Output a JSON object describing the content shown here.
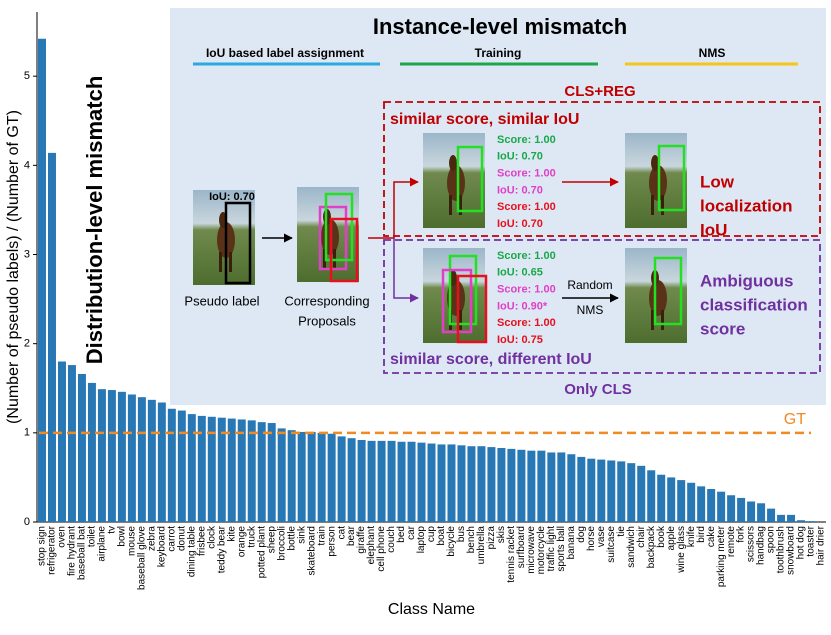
{
  "chart_data": {
    "type": "bar",
    "y_label": "(Number of pseudo labels) / (Number of GT)",
    "x_label": "Class Name",
    "annotation": "Distribution-level  mismatch",
    "color": "#2878b5",
    "reference_line": {
      "value": 1,
      "label": "GT",
      "color": "#f08a24"
    },
    "categories": [
      "stop sign",
      "refrigerator",
      "oven",
      "fire hydrant",
      "baseball bat",
      "toilet",
      "airplane",
      "tv",
      "bowl",
      "mouse",
      "baseball glove",
      "zebra",
      "keyboard",
      "carrot",
      "donut",
      "dining table",
      "frisbee",
      "clock",
      "teddy bear",
      "kite",
      "orange",
      "truck",
      "potted plant",
      "sheep",
      "broccoli",
      "bottle",
      "sink",
      "skateboard",
      "train",
      "person",
      "cat",
      "bear",
      "giraffe",
      "elephant",
      "cell phone",
      "couch",
      "bed",
      "car",
      "laptop",
      "cup",
      "boat",
      "bicycle",
      "bus",
      "bench",
      "umbrella",
      "pizza",
      "skis",
      "tennis racket",
      "surfboard",
      "microwave",
      "motorcycle",
      "traffic light",
      "sports ball",
      "banana",
      "dog",
      "horse",
      "vase",
      "suitcase",
      "tie",
      "sandwich",
      "chair",
      "backpack",
      "book",
      "apple",
      "wine glass",
      "knife",
      "bird",
      "cake",
      "parking meter",
      "remote",
      "fork",
      "scissors",
      "handbag",
      "spoon",
      "toothbrush",
      "snowboard",
      "hot dog",
      "toaster",
      "hair drier"
    ],
    "values": [
      5.42,
      4.14,
      1.8,
      1.76,
      1.66,
      1.56,
      1.49,
      1.48,
      1.46,
      1.43,
      1.4,
      1.37,
      1.34,
      1.27,
      1.25,
      1.21,
      1.19,
      1.18,
      1.17,
      1.16,
      1.15,
      1.14,
      1.12,
      1.11,
      1.05,
      1.03,
      1.01,
      1.01,
      1.0,
      0.99,
      0.96,
      0.94,
      0.92,
      0.91,
      0.91,
      0.91,
      0.9,
      0.9,
      0.89,
      0.88,
      0.87,
      0.87,
      0.86,
      0.85,
      0.85,
      0.84,
      0.83,
      0.82,
      0.81,
      0.8,
      0.8,
      0.78,
      0.78,
      0.76,
      0.73,
      0.71,
      0.7,
      0.69,
      0.68,
      0.66,
      0.63,
      0.58,
      0.53,
      0.5,
      0.47,
      0.44,
      0.4,
      0.37,
      0.34,
      0.3,
      0.27,
      0.23,
      0.21,
      0.15,
      0.08,
      0.08,
      0.02,
      0.01,
      0.0
    ],
    "ylim": [
      0,
      5.72
    ],
    "yticks": [
      0,
      1,
      2,
      3,
      4,
      5
    ]
  },
  "inset": {
    "title": "Instance-level mismatch",
    "stages": [
      "IoU based label assignment",
      "Training",
      "NMS"
    ],
    "cls_reg": "CLS+REG",
    "top_case": "similar score, similar IoU",
    "bottom_case": "similar score, different IoU",
    "only_cls": "Only CLS",
    "pseudo_iou": "IoU: 0.70",
    "pseudo_label": "Pseudo label",
    "proposals": [
      "Corresponding",
      "Proposals"
    ],
    "random_nms": [
      "Random",
      "NMS"
    ],
    "top_result": [
      "Low",
      "localization",
      "IoU"
    ],
    "bottom_result": [
      "Ambiguous",
      "classification",
      "score"
    ],
    "top_scores": [
      {
        "text": "Score: 1.00",
        "color": "#1aa84a"
      },
      {
        "text": "IoU: 0.70",
        "color": "#1aa84a"
      },
      {
        "text": "Score: 1.00",
        "color": "#e040c8"
      },
      {
        "text": "IoU: 0.70",
        "color": "#e040c8"
      },
      {
        "text": "Score: 1.00",
        "color": "#e8101e"
      },
      {
        "text": "IoU: 0.70",
        "color": "#e8101e"
      }
    ],
    "bottom_scores": [
      {
        "text": "Score: 1.00",
        "color": "#1aa84a"
      },
      {
        "text": "IoU: 0.65",
        "color": "#1aa84a"
      },
      {
        "text": "Score: 1.00",
        "color": "#e040c8"
      },
      {
        "text": "IoU: 0.90*",
        "color": "#e040c8"
      },
      {
        "text": "Score: 1.00",
        "color": "#e8101e"
      },
      {
        "text": "IoU: 0.75",
        "color": "#e8101e"
      }
    ]
  }
}
